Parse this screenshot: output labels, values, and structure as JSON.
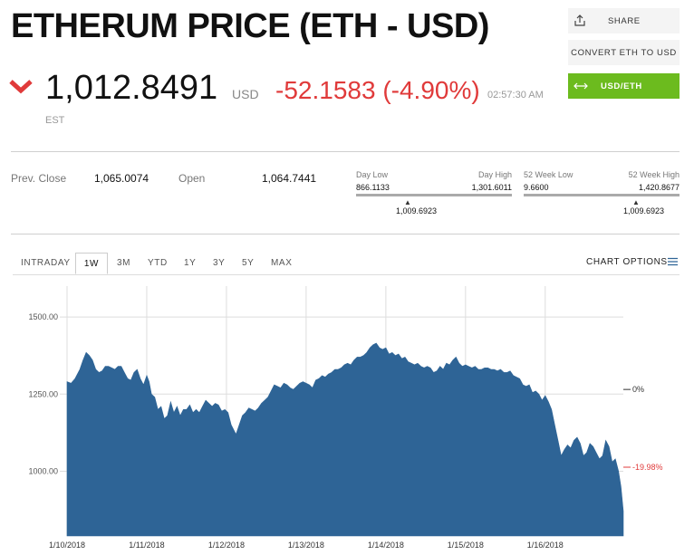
{
  "header": {
    "title": "ETHERUM PRICE (ETH - USD)"
  },
  "quote": {
    "price": "1,012.8491",
    "currency": "USD",
    "change": "-52.1583 (-4.90%)",
    "time": "02:57:30 AM",
    "timezone": "EST",
    "down_color": "#e03a3a"
  },
  "actions": {
    "share": "SHARE",
    "convert": "CONVERT ETH TO USD",
    "toggle": "USD/ETH",
    "share_icon": "share-icon",
    "toggle_icon": "swap-arrows-icon",
    "toggle_color": "#6cbb1e"
  },
  "stats": {
    "prev_close_label": "Prev. Close",
    "prev_close": "1,065.0074",
    "open_label": "Open",
    "open": "1,064.7441",
    "day_low_label": "Day Low",
    "day_high_label": "Day High",
    "day_low": "866.1133",
    "day_high": "1,301.6011",
    "day_current": "1,009.6923",
    "w52_low_label": "52 Week Low",
    "w52_high_label": "52 Week High",
    "w52_low": "9.6600",
    "w52_high": "1,420.8677",
    "w52_current": "1,009.6923"
  },
  "tabs": [
    "INTRADAY",
    "1W",
    "3M",
    "YTD",
    "1Y",
    "3Y",
    "5Y",
    "MAX"
  ],
  "active_tab": "1W",
  "chart_options": "CHART OPTIONS",
  "chart_data": {
    "type": "area",
    "color": "#2e6496",
    "x_ticks": [
      "1/10/2018",
      "1/11/2018",
      "1/12/2018",
      "1/13/2018",
      "1/14/2018",
      "1/15/2018",
      "1/16/2018"
    ],
    "y_ticks": [
      1000,
      1250,
      1500
    ],
    "y_tick_labels": [
      "1000.00",
      "1250.00",
      "1500.00"
    ],
    "ylim": [
      790,
      1600
    ],
    "xlim": [
      0,
      6.98
    ],
    "grid": true,
    "reference_lines": [
      {
        "label": "0%",
        "value": 1265,
        "color": "#333333"
      },
      {
        "label": "-19.98%",
        "value": 1013,
        "color": "#e03a3a"
      }
    ],
    "series": [
      {
        "points": [
          [
            0.0,
            1290
          ],
          [
            0.05,
            1285
          ],
          [
            0.1,
            1300
          ],
          [
            0.16,
            1330
          ],
          [
            0.2,
            1360
          ],
          [
            0.24,
            1385
          ],
          [
            0.28,
            1375
          ],
          [
            0.32,
            1360
          ],
          [
            0.36,
            1330
          ],
          [
            0.4,
            1320
          ],
          [
            0.44,
            1325
          ],
          [
            0.48,
            1340
          ],
          [
            0.52,
            1340
          ],
          [
            0.56,
            1335
          ],
          [
            0.6,
            1330
          ],
          [
            0.64,
            1340
          ],
          [
            0.68,
            1340
          ],
          [
            0.72,
            1320
          ],
          [
            0.76,
            1300
          ],
          [
            0.8,
            1295
          ],
          [
            0.84,
            1320
          ],
          [
            0.88,
            1330
          ],
          [
            0.92,
            1300
          ],
          [
            0.96,
            1280
          ],
          [
            1.0,
            1310
          ],
          [
            1.03,
            1290
          ],
          [
            1.06,
            1250
          ],
          [
            1.1,
            1240
          ],
          [
            1.14,
            1200
          ],
          [
            1.18,
            1210
          ],
          [
            1.22,
            1170
          ],
          [
            1.26,
            1180
          ],
          [
            1.3,
            1225
          ],
          [
            1.34,
            1190
          ],
          [
            1.38,
            1210
          ],
          [
            1.42,
            1180
          ],
          [
            1.46,
            1200
          ],
          [
            1.5,
            1200
          ],
          [
            1.54,
            1215
          ],
          [
            1.58,
            1190
          ],
          [
            1.62,
            1200
          ],
          [
            1.66,
            1190
          ],
          [
            1.7,
            1210
          ],
          [
            1.74,
            1230
          ],
          [
            1.78,
            1220
          ],
          [
            1.82,
            1210
          ],
          [
            1.86,
            1220
          ],
          [
            1.9,
            1215
          ],
          [
            1.94,
            1195
          ],
          [
            1.98,
            1200
          ],
          [
            2.02,
            1190
          ],
          [
            2.06,
            1150
          ],
          [
            2.1,
            1130
          ],
          [
            2.12,
            1120
          ],
          [
            2.16,
            1150
          ],
          [
            2.2,
            1180
          ],
          [
            2.24,
            1190
          ],
          [
            2.28,
            1205
          ],
          [
            2.32,
            1200
          ],
          [
            2.36,
            1195
          ],
          [
            2.4,
            1205
          ],
          [
            2.44,
            1220
          ],
          [
            2.48,
            1230
          ],
          [
            2.52,
            1240
          ],
          [
            2.56,
            1260
          ],
          [
            2.6,
            1280
          ],
          [
            2.64,
            1275
          ],
          [
            2.68,
            1270
          ],
          [
            2.72,
            1285
          ],
          [
            2.76,
            1280
          ],
          [
            2.8,
            1270
          ],
          [
            2.84,
            1265
          ],
          [
            2.88,
            1275
          ],
          [
            2.92,
            1285
          ],
          [
            2.96,
            1290
          ],
          [
            3.0,
            1285
          ],
          [
            3.04,
            1280
          ],
          [
            3.08,
            1270
          ],
          [
            3.12,
            1295
          ],
          [
            3.16,
            1300
          ],
          [
            3.2,
            1310
          ],
          [
            3.24,
            1305
          ],
          [
            3.28,
            1315
          ],
          [
            3.32,
            1320
          ],
          [
            3.36,
            1330
          ],
          [
            3.4,
            1330
          ],
          [
            3.44,
            1335
          ],
          [
            3.48,
            1345
          ],
          [
            3.52,
            1350
          ],
          [
            3.56,
            1345
          ],
          [
            3.6,
            1360
          ],
          [
            3.64,
            1370
          ],
          [
            3.68,
            1370
          ],
          [
            3.72,
            1375
          ],
          [
            3.76,
            1385
          ],
          [
            3.8,
            1400
          ],
          [
            3.84,
            1410
          ],
          [
            3.88,
            1415
          ],
          [
            3.92,
            1400
          ],
          [
            3.96,
            1395
          ],
          [
            4.0,
            1400
          ],
          [
            4.04,
            1380
          ],
          [
            4.08,
            1385
          ],
          [
            4.12,
            1375
          ],
          [
            4.16,
            1380
          ],
          [
            4.2,
            1365
          ],
          [
            4.24,
            1370
          ],
          [
            4.28,
            1355
          ],
          [
            4.32,
            1350
          ],
          [
            4.36,
            1345
          ],
          [
            4.4,
            1350
          ],
          [
            4.44,
            1340
          ],
          [
            4.48,
            1335
          ],
          [
            4.52,
            1340
          ],
          [
            4.56,
            1335
          ],
          [
            4.6,
            1320
          ],
          [
            4.64,
            1325
          ],
          [
            4.68,
            1340
          ],
          [
            4.72,
            1330
          ],
          [
            4.76,
            1350
          ],
          [
            4.8,
            1345
          ],
          [
            4.84,
            1360
          ],
          [
            4.88,
            1370
          ],
          [
            4.92,
            1350
          ],
          [
            4.96,
            1340
          ],
          [
            5.0,
            1345
          ],
          [
            5.04,
            1340
          ],
          [
            5.08,
            1335
          ],
          [
            5.12,
            1340
          ],
          [
            5.16,
            1330
          ],
          [
            5.2,
            1330
          ],
          [
            5.24,
            1335
          ],
          [
            5.28,
            1335
          ],
          [
            5.32,
            1330
          ],
          [
            5.36,
            1330
          ],
          [
            5.4,
            1325
          ],
          [
            5.44,
            1330
          ],
          [
            5.48,
            1320
          ],
          [
            5.52,
            1320
          ],
          [
            5.56,
            1325
          ],
          [
            5.6,
            1310
          ],
          [
            5.64,
            1305
          ],
          [
            5.68,
            1300
          ],
          [
            5.72,
            1280
          ],
          [
            5.76,
            1275
          ],
          [
            5.8,
            1280
          ],
          [
            5.84,
            1255
          ],
          [
            5.88,
            1260
          ],
          [
            5.92,
            1250
          ],
          [
            5.96,
            1230
          ],
          [
            6.0,
            1245
          ],
          [
            6.04,
            1225
          ],
          [
            6.08,
            1200
          ],
          [
            6.12,
            1150
          ],
          [
            6.16,
            1100
          ],
          [
            6.2,
            1050
          ],
          [
            6.24,
            1070
          ],
          [
            6.28,
            1085
          ],
          [
            6.32,
            1075
          ],
          [
            6.36,
            1100
          ],
          [
            6.4,
            1110
          ],
          [
            6.44,
            1090
          ],
          [
            6.48,
            1050
          ],
          [
            6.52,
            1060
          ],
          [
            6.56,
            1090
          ],
          [
            6.6,
            1080
          ],
          [
            6.64,
            1060
          ],
          [
            6.68,
            1040
          ],
          [
            6.72,
            1050
          ],
          [
            6.76,
            1100
          ],
          [
            6.8,
            1080
          ],
          [
            6.84,
            1030
          ],
          [
            6.88,
            1040
          ],
          [
            6.92,
            1000
          ],
          [
            6.95,
            950
          ],
          [
            6.98,
            870
          ]
        ]
      }
    ]
  }
}
